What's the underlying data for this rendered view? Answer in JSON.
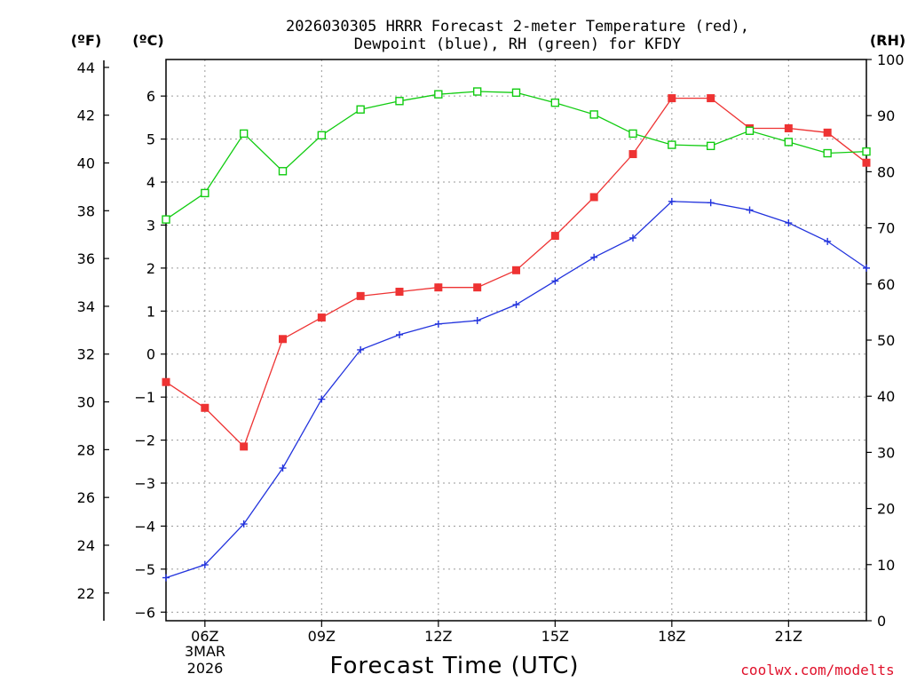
{
  "chart_data": {
    "type": "line",
    "title_line1": "2026030305 HRRR Forecast 2-meter Temperature (red),",
    "title_line2": "Dewpoint (blue), RH (green) for KFDY",
    "left_unit_f": "(ºF)",
    "left_unit_c": "(ºC)",
    "right_unit": "(RH)",
    "xlabel": "Forecast Time (UTC)",
    "credit": "coolwx.com/modelts",
    "date_label_line1": "3MAR",
    "date_label_line2": "2026",
    "x_range": [
      5,
      23
    ],
    "x_ticks": [
      {
        "hour": 6,
        "label": "06Z"
      },
      {
        "hour": 9,
        "label": "09Z"
      },
      {
        "hour": 12,
        "label": "12Z"
      },
      {
        "hour": 15,
        "label": "15Z"
      },
      {
        "hour": 18,
        "label": "18Z"
      },
      {
        "hour": 21,
        "label": "21Z"
      }
    ],
    "celsius_range": [
      -6.2,
      6.85
    ],
    "celsius_ticks": [
      -6,
      -5,
      -4,
      -3,
      -2,
      -1,
      0,
      1,
      2,
      3,
      4,
      5,
      6
    ],
    "fahrenheit_ticks": [
      22,
      24,
      26,
      28,
      30,
      32,
      34,
      36,
      38,
      40,
      42,
      44
    ],
    "rh_range": [
      0,
      100
    ],
    "rh_ticks": [
      0,
      10,
      20,
      30,
      40,
      50,
      60,
      70,
      80,
      90,
      100
    ],
    "hours": [
      5,
      6,
      7,
      8,
      9,
      10,
      11,
      12,
      13,
      14,
      15,
      16,
      17,
      18,
      19,
      20,
      21,
      22,
      23
    ],
    "series": [
      {
        "name": "Temperature",
        "unit": "C",
        "color": "#ee3333",
        "marker": "filled-square",
        "values": [
          -0.65,
          -1.25,
          -2.15,
          0.35,
          0.85,
          1.35,
          1.45,
          1.55,
          1.55,
          1.95,
          2.75,
          3.65,
          4.65,
          5.95,
          5.95,
          5.25,
          5.25,
          5.15,
          4.45
        ]
      },
      {
        "name": "Dewpoint",
        "unit": "C",
        "color": "#2233dd",
        "marker": "plus",
        "values": [
          -5.2,
          -4.9,
          -3.95,
          -2.65,
          -1.05,
          0.1,
          0.45,
          0.7,
          0.78,
          1.15,
          1.7,
          2.25,
          2.7,
          3.55,
          3.52,
          3.35,
          3.05,
          2.62,
          2.0
        ]
      },
      {
        "name": "RH",
        "unit": "%",
        "color": "#11cc11",
        "marker": "open-square",
        "values": [
          71.5,
          76.2,
          86.8,
          80.1,
          86.5,
          91.1,
          92.6,
          93.8,
          94.3,
          94.1,
          92.3,
          90.2,
          86.8,
          84.8,
          84.6,
          87.3,
          85.3,
          83.3,
          83.6
        ]
      }
    ]
  }
}
